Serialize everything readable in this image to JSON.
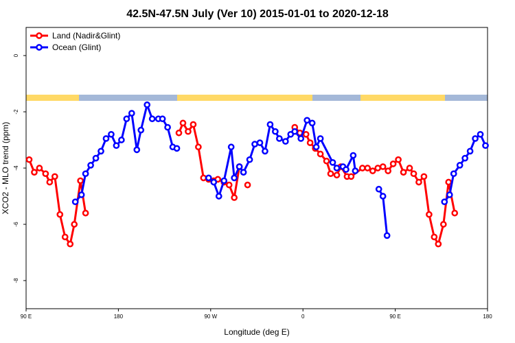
{
  "chart_data": {
    "type": "line",
    "title": "42.5N-47.5N July (Ver 10)   2015-01-01 to 2020-12-18",
    "x_label": "Longitude (deg E)",
    "y_label": "XCO2 - MLO trend (ppm)",
    "xlim": [
      90,
      540
    ],
    "ylim": [
      -9,
      1
    ],
    "xticks": [
      {
        "value": 90,
        "label": "90 E"
      },
      180,
      {
        "value": 270,
        "label": "90 W"
      },
      {
        "value": 360,
        "label": "0"
      },
      {
        "value": 450,
        "label": "90 E"
      },
      {
        "value": 540,
        "label": "180"
      }
    ],
    "yticks": [
      -8,
      -6,
      -4,
      -2,
      0
    ],
    "grid": false,
    "legend": "top-left",
    "series": [
      {
        "name": "Land (Nadir&Glint)",
        "color": "#ff0000",
        "x": [
          93,
          98,
          103,
          109,
          113,
          118,
          123,
          128,
          133,
          137,
          143,
          148,
          null,
          239,
          243,
          248,
          253,
          258,
          263,
          268,
          273,
          277,
          283,
          288,
          293,
          298,
          null,
          306,
          null,
          352,
          357,
          363,
          367,
          372,
          377,
          383,
          387,
          393,
          397,
          403,
          407,
          418,
          423,
          428,
          433,
          438,
          443,
          448,
          453,
          458,
          464,
          468,
          473,
          478,
          483,
          488,
          492,
          497,
          502,
          508
        ],
        "values": [
          -3.7,
          -4.15,
          -4.0,
          -4.2,
          -4.5,
          -4.3,
          -5.65,
          -6.45,
          -6.7,
          -6.0,
          -4.45,
          -5.6,
          null,
          -2.75,
          -2.4,
          -2.7,
          -2.45,
          -3.25,
          -4.35,
          -4.4,
          -4.45,
          -4.4,
          -4.5,
          -4.6,
          -5.05,
          -3.95,
          null,
          -4.6,
          null,
          -2.55,
          -2.75,
          -2.8,
          -3.1,
          -3.3,
          -3.5,
          -3.75,
          -4.2,
          -4.25,
          -3.95,
          -4.3,
          -4.3,
          -4.0,
          -4.0,
          -4.1,
          -4.0,
          -3.95,
          -4.1,
          -3.85,
          -3.7,
          -4.15,
          -4.0,
          -4.2,
          -4.5,
          -4.3,
          -5.65,
          -6.45,
          -6.7,
          -6.0,
          -4.5,
          -5.6
        ]
      },
      {
        "name": "Ocean (Glint)",
        "color": "#0000ff",
        "x": [
          138,
          144,
          148,
          153,
          158,
          163,
          168,
          173,
          178,
          183,
          188,
          193,
          198,
          202,
          208,
          213,
          219,
          223,
          228,
          233,
          237,
          null,
          268,
          273,
          278,
          283,
          290,
          293,
          298,
          302,
          308,
          313,
          318,
          323,
          328,
          333,
          337,
          343,
          348,
          352,
          358,
          364,
          369,
          373,
          377,
          389,
          393,
          399,
          402,
          409,
          411,
          null,
          434,
          438,
          442,
          null,
          498,
          503,
          507,
          513,
          518,
          523,
          528,
          533,
          538
        ],
        "values": [
          -5.2,
          -4.95,
          -4.2,
          -3.9,
          -3.65,
          -3.4,
          -2.95,
          -2.8,
          -3.2,
          -3.0,
          -2.25,
          -2.05,
          -3.35,
          -2.65,
          -1.75,
          -2.25,
          -2.25,
          -2.25,
          -2.55,
          -3.25,
          -3.3,
          null,
          -4.35,
          -4.5,
          -5.0,
          -4.45,
          -3.25,
          -4.35,
          -3.95,
          -4.15,
          -3.7,
          -3.15,
          -3.1,
          -3.4,
          -2.45,
          -2.7,
          -2.95,
          -3.05,
          -2.8,
          -2.7,
          -2.95,
          -2.3,
          -2.4,
          -3.25,
          -2.95,
          -3.8,
          -4.0,
          -3.95,
          -4.05,
          -3.55,
          -4.1,
          null,
          -4.75,
          -5.0,
          -6.4,
          null,
          -5.2,
          -4.95,
          -4.2,
          -3.9,
          -3.65,
          -3.4,
          -2.95,
          -2.8,
          -3.2
        ]
      }
    ]
  }
}
